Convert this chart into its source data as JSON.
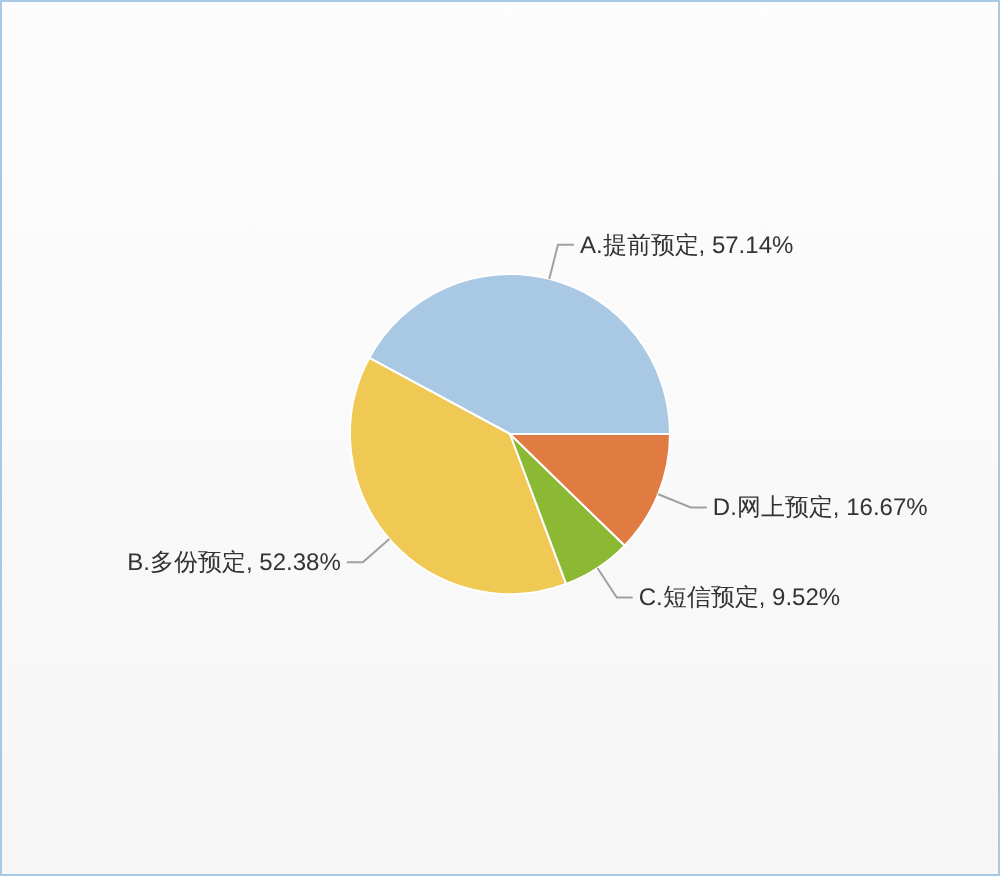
{
  "chart_data": {
    "type": "pie",
    "categories": [
      "A.提前预定",
      "B.多份预定",
      "C.短信预定",
      "D.网上预定"
    ],
    "values": [
      57.14,
      52.38,
      9.52,
      16.67
    ],
    "colors": [
      "#a9c8e3",
      "#f0c854",
      "#8cb934",
      "#e07c42"
    ],
    "value_labels": [
      "57.14%",
      "52.38%",
      "9.52%",
      "16.67%"
    ]
  }
}
